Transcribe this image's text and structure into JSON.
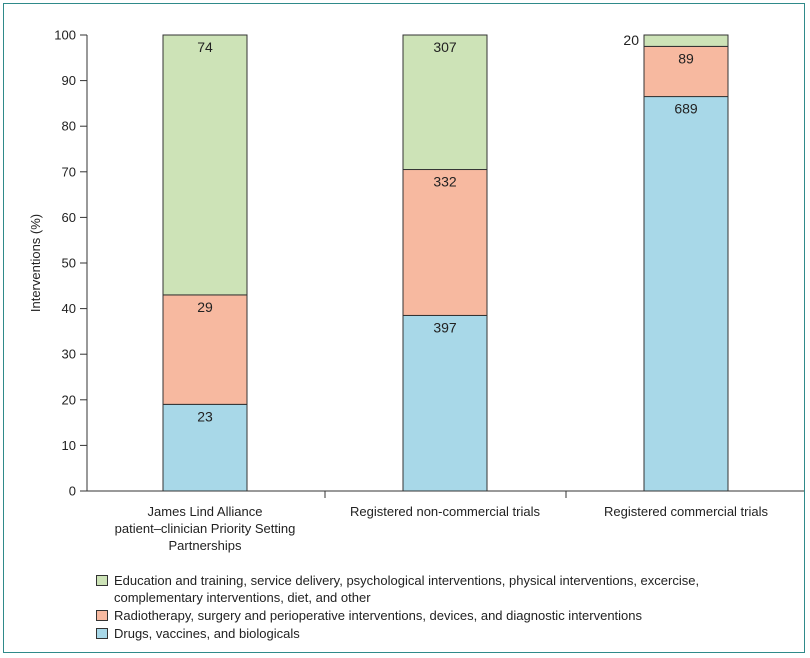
{
  "chart_data": {
    "type": "bar",
    "stacked": true,
    "ylabel": "Interventions (%)",
    "ylim": [
      0,
      100
    ],
    "yticks": [
      0,
      10,
      20,
      30,
      40,
      50,
      60,
      70,
      80,
      90,
      100
    ],
    "categories": [
      [
        "James Lind Alliance",
        "patient–clinician Priority Setting",
        "Partnerships"
      ],
      [
        "Registered non-commercial trials"
      ],
      [
        "Registered commercial trials"
      ]
    ],
    "series": [
      {
        "name": "Drugs, vaccines, and biologicals",
        "color": "#a8d8e8",
        "values": [
          19,
          38.5,
          86.5
        ],
        "labels": [
          "23",
          "397",
          "689"
        ]
      },
      {
        "name": "Radiotherapy, surgery and perioperative interventions, devices, and diagnostic interventions",
        "color": "#f7b9a0",
        "values": [
          24,
          32,
          11
        ],
        "labels": [
          "29",
          "332",
          "89"
        ]
      },
      {
        "name": "Education and training, service delivery, psychological interventions, physical interventions, excercise, complementary interventions, diet, and other",
        "color": "#cde3b7",
        "values": [
          57,
          29.5,
          2.5
        ],
        "labels": [
          "74",
          "307",
          "20"
        ]
      }
    ],
    "legend": {
      "placement": "bottom",
      "items": [
        {
          "lines": [
            "Education and training, service delivery, psychological interventions, physical interventions, excercise,",
            "complementary interventions, diet, and other"
          ],
          "color": "#cde3b7"
        },
        {
          "lines": [
            "Radiotherapy, surgery and perioperative interventions, devices, and diagnostic interventions"
          ],
          "color": "#f7b9a0"
        },
        {
          "lines": [
            "Drugs, vaccines, and biologicals"
          ],
          "color": "#a8d8e8"
        }
      ]
    }
  }
}
